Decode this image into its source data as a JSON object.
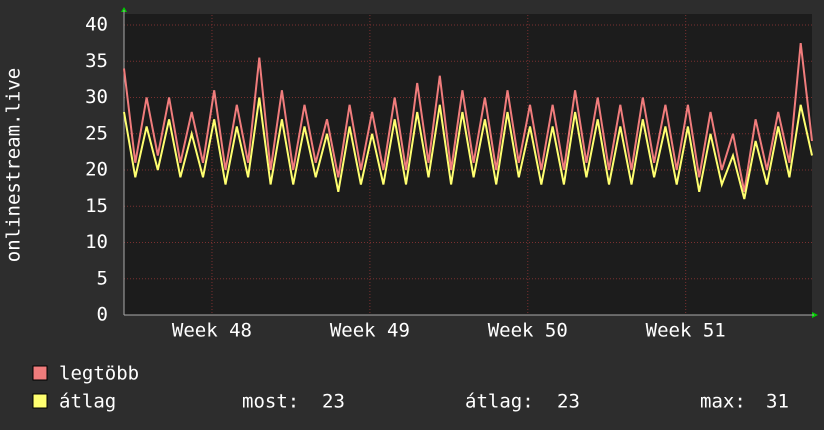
{
  "chart_data": {
    "type": "line",
    "ylabel": "onlinestream.live",
    "x": [
      0,
      0.5,
      1,
      1.5,
      2,
      2.5,
      3,
      3.5,
      4,
      4.5,
      5,
      5.5,
      6,
      6.5,
      7,
      7.5,
      8,
      8.5,
      9,
      9.5,
      10,
      10.5,
      11,
      11.5,
      12,
      12.5,
      13,
      13.5,
      14,
      14.5,
      15,
      15.5,
      16,
      16.5,
      17,
      17.5,
      18,
      18.5,
      19,
      19.5,
      20,
      20.5,
      21,
      21.5,
      22,
      22.5,
      23,
      23.5,
      24,
      24.5,
      25,
      25.5,
      26,
      26.5,
      27,
      27.5,
      28,
      28.5,
      29,
      29.5,
      30,
      30.5
    ],
    "xlim": [
      0,
      30.5
    ],
    "xticks": [
      {
        "value": 3.9,
        "label": "Week 48"
      },
      {
        "value": 10.9,
        "label": "Week 49"
      },
      {
        "value": 17.9,
        "label": "Week 50"
      },
      {
        "value": 24.9,
        "label": "Week 51"
      }
    ],
    "ylim": [
      0,
      40
    ],
    "yticks": [
      0,
      5,
      10,
      15,
      20,
      25,
      30,
      35,
      40
    ],
    "grid": true,
    "series": [
      {
        "name": "legtöbb",
        "color": "#f07c7c",
        "values": [
          34,
          21,
          30,
          22,
          30,
          21,
          28,
          21,
          31,
          20,
          29,
          21,
          35.5,
          20,
          31,
          20,
          29,
          21,
          27,
          19,
          29,
          20,
          28,
          20,
          30,
          20,
          32,
          21,
          33,
          20,
          31,
          21,
          30,
          20,
          31,
          21,
          29,
          20,
          29,
          20,
          31,
          21,
          30,
          20,
          29,
          20,
          30,
          21,
          29,
          20,
          29,
          19,
          28,
          20,
          25,
          17,
          27,
          20,
          28,
          21,
          37.5,
          24
        ]
      },
      {
        "name": "átlag",
        "color": "#ffff70",
        "values": [
          28,
          19,
          26,
          20,
          27,
          19,
          25,
          19,
          27,
          18,
          26,
          19,
          30,
          18,
          27,
          18,
          26,
          19,
          25,
          17,
          26,
          18,
          25,
          18,
          27,
          18,
          28,
          19,
          29,
          18,
          28,
          19,
          27,
          18,
          28,
          19,
          26,
          18,
          26,
          18,
          28,
          19,
          27,
          18,
          26,
          18,
          27,
          19,
          26,
          18,
          26,
          17,
          25,
          18,
          22,
          16,
          24,
          18,
          26,
          19,
          29,
          22
        ]
      }
    ],
    "stats": [
      {
        "label": "most:",
        "value": 23
      },
      {
        "label": "átlag:",
        "value": 23
      },
      {
        "label": "max:",
        "value": 31
      }
    ]
  }
}
